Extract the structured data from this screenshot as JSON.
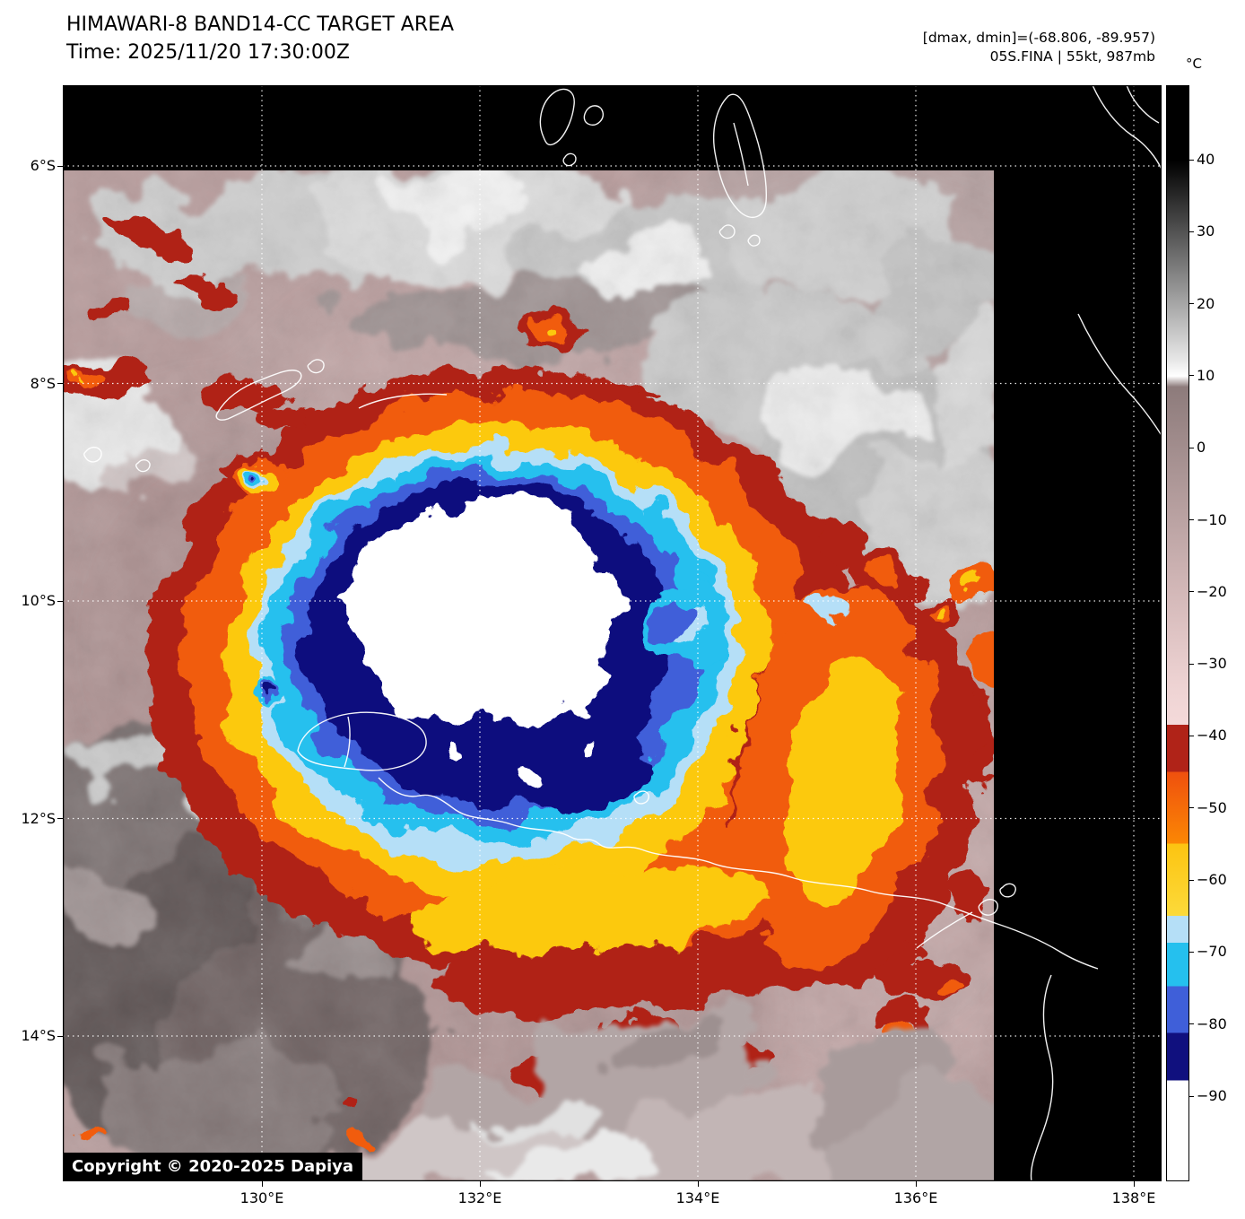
{
  "header": {
    "title": "HIMAWARI-8 BAND14-CC TARGET AREA",
    "time_line": "Time: 2025/11/20 17:30:00Z",
    "dmax_dmin_line": "[dmax, dmin]=(-68.806, -89.957)",
    "storm_line": "05S.FINA | 55kt, 987mb"
  },
  "map": {
    "copyright": "Copyright © 2020-2025 Dapiya",
    "lat_ticks": [
      {
        "label": "6°S",
        "value": -6
      },
      {
        "label": "8°S",
        "value": -8
      },
      {
        "label": "10°S",
        "value": -10
      },
      {
        "label": "12°S",
        "value": -12
      },
      {
        "label": "14°S",
        "value": -14
      }
    ],
    "lon_ticks": [
      {
        "label": "130°E",
        "value": 130
      },
      {
        "label": "132°E",
        "value": 132
      },
      {
        "label": "134°E",
        "value": 134
      },
      {
        "label": "136°E",
        "value": 136
      },
      {
        "label": "138°E",
        "value": 138
      }
    ]
  },
  "colorbar": {
    "unit": "°C",
    "ticks": [
      {
        "label": "40",
        "value": 40
      },
      {
        "label": "30",
        "value": 30
      },
      {
        "label": "20",
        "value": 20
      },
      {
        "label": "10",
        "value": 10
      },
      {
        "label": "0",
        "value": 0
      },
      {
        "label": "−10",
        "value": -10
      },
      {
        "label": "−20",
        "value": -20
      },
      {
        "label": "−30",
        "value": -30
      },
      {
        "label": "−40",
        "value": -40
      },
      {
        "label": "−50",
        "value": -50
      },
      {
        "label": "−60",
        "value": -60
      },
      {
        "label": "−70",
        "value": -70
      },
      {
        "label": "−80",
        "value": -80
      },
      {
        "label": "−90",
        "value": -90
      }
    ],
    "stops": [
      {
        "t": 50.3,
        "c": "#000000"
      },
      {
        "t": 40,
        "c": "#000000"
      },
      {
        "t": 12,
        "c": "#e9e9e9"
      },
      {
        "t": 10,
        "c": "#ffffff"
      },
      {
        "t": 8.5,
        "c": "#8d7b7b"
      },
      {
        "t": -20,
        "c": "#d3b8b8"
      },
      {
        "t": -33,
        "c": "#eed3d3"
      },
      {
        "t": -38.5,
        "c": "#f4dada"
      },
      {
        "t": -38.5,
        "c": "#b02318"
      },
      {
        "t": -45,
        "c": "#b02318"
      },
      {
        "t": -45,
        "c": "#ef500e"
      },
      {
        "t": -55,
        "c": "#fb8704"
      },
      {
        "t": -55,
        "c": "#fcc411"
      },
      {
        "t": -65,
        "c": "#fcda3a"
      },
      {
        "t": -65,
        "c": "#b5dff7"
      },
      {
        "t": -68.8,
        "c": "#b5dff7"
      },
      {
        "t": -68.8,
        "c": "#25c0ee"
      },
      {
        "t": -74.8,
        "c": "#25c0ee"
      },
      {
        "t": -74.8,
        "c": "#3f5fd9"
      },
      {
        "t": -81.3,
        "c": "#3f5fd9"
      },
      {
        "t": -81.3,
        "c": "#10107e"
      },
      {
        "t": -87.9,
        "c": "#10107e"
      },
      {
        "t": -87.9,
        "c": "#ffffff"
      },
      {
        "t": -101.8,
        "c": "#ffffff"
      }
    ]
  },
  "palette": {
    "plot_black": "#000000",
    "pink_bg": "#b79c9c",
    "red": "#b02318",
    "orange": "#f15c0e",
    "yellow": "#fcc911",
    "pale_blue": "#b5dff7",
    "cyan": "#25c0ee",
    "blue": "#3f5fd9",
    "navy": "#10107e",
    "coast": "#ffffff",
    "grid": "#ffffff"
  }
}
